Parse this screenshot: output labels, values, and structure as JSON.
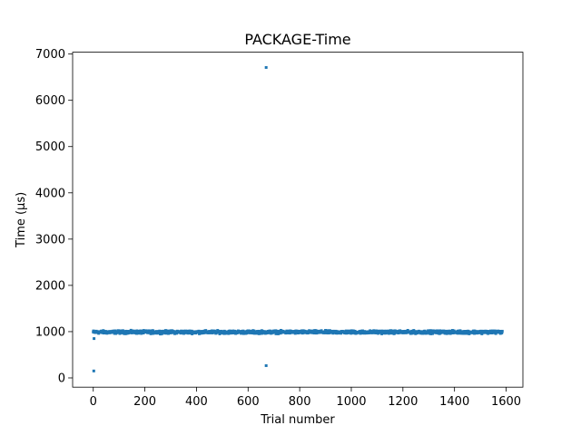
{
  "chart_data": {
    "type": "scatter",
    "title": "PACKAGE-Time",
    "xlabel": "Trial number",
    "ylabel": "Time (µs)",
    "xlim": [
      -80,
      1665
    ],
    "ylim": [
      -200,
      7040
    ],
    "xticks": [
      0,
      200,
      400,
      600,
      800,
      1000,
      1200,
      1400,
      1600
    ],
    "yticks": [
      0,
      1000,
      2000,
      3000,
      4000,
      5000,
      6000,
      7000
    ],
    "grid": false,
    "legend": "none",
    "marker_color": "#1f77b4",
    "n_points": 1586,
    "baseline_value": 990,
    "outliers": [
      {
        "x": 2,
        "y": 150
      },
      {
        "x": 3,
        "y": 850
      },
      {
        "x": 670,
        "y": 6710
      },
      {
        "x": 670,
        "y": 265
      }
    ]
  }
}
